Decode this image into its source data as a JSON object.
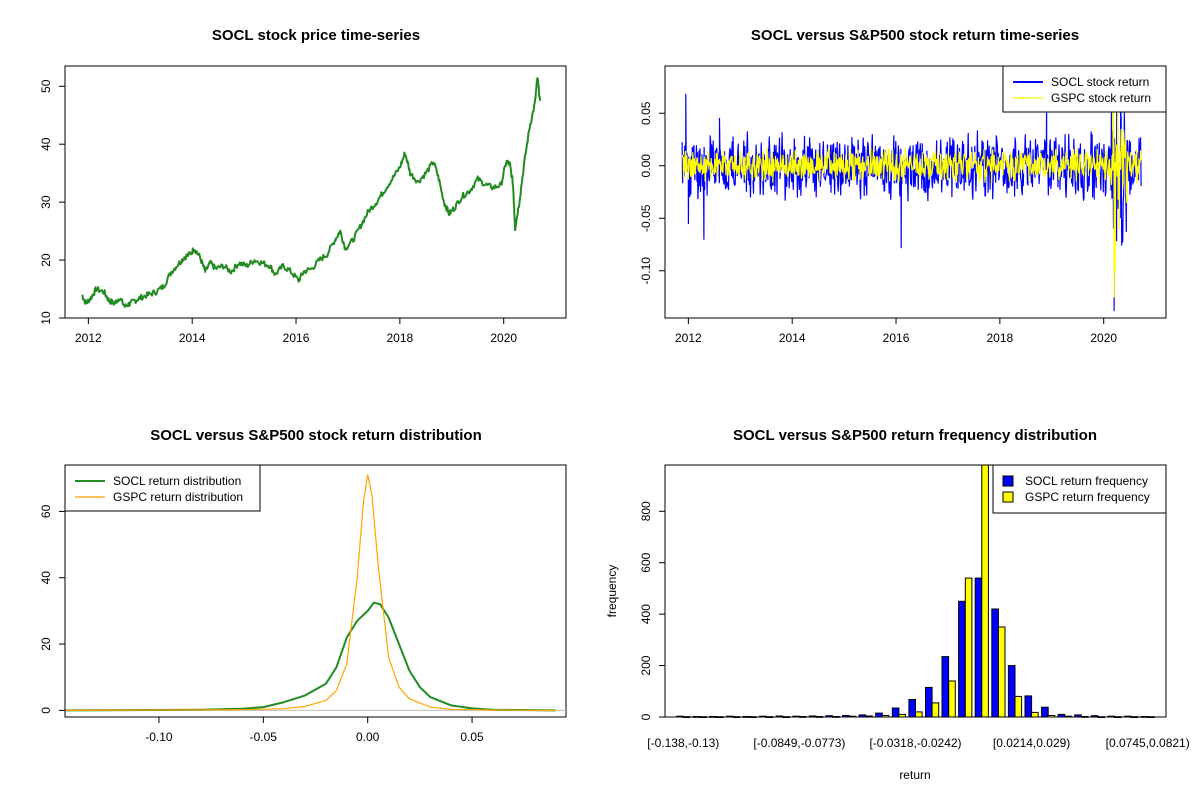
{
  "chart_data": [
    {
      "id": "price",
      "type": "line",
      "title": "SOCL stock price time-series",
      "xlabel": "",
      "ylabel": "",
      "xlim": [
        2011.55,
        2021.2
      ],
      "ylim": [
        10,
        53.5
      ],
      "xticks": [
        2012,
        2014,
        2016,
        2018,
        2020
      ],
      "xtick_labels": [
        "2012",
        "2014",
        "2016",
        "2018",
        "2020"
      ],
      "yticks": [
        10,
        20,
        30,
        40,
        50
      ],
      "ytick_labels": [
        "10",
        "20",
        "30",
        "40",
        "50"
      ],
      "series": [
        {
          "color": "#228B22",
          "x": [
            2011.88,
            2011.95,
            2012.05,
            2012.15,
            2012.3,
            2012.4,
            2012.5,
            2012.6,
            2012.7,
            2012.8,
            2012.9,
            2013.0,
            2013.15,
            2013.3,
            2013.45,
            2013.6,
            2013.75,
            2013.85,
            2013.95,
            2014.05,
            2014.15,
            2014.25,
            2014.35,
            2014.45,
            2014.6,
            2014.75,
            2014.9,
            2015.05,
            2015.2,
            2015.35,
            2015.5,
            2015.6,
            2015.75,
            2015.9,
            2016.05,
            2016.15,
            2016.3,
            2016.45,
            2016.6,
            2016.75,
            2016.85,
            2016.95,
            2017.1,
            2017.25,
            2017.4,
            2017.55,
            2017.7,
            2017.85,
            2018.0,
            2018.1,
            2018.2,
            2018.35,
            2018.5,
            2018.65,
            2018.75,
            2018.85,
            2018.95,
            2019.05,
            2019.2,
            2019.35,
            2019.5,
            2019.65,
            2019.8,
            2019.95,
            2020.05,
            2020.12,
            2020.18,
            2020.22,
            2020.3,
            2020.4,
            2020.5,
            2020.6,
            2020.65,
            2020.7
          ],
          "y": [
            14.0,
            12.5,
            13.5,
            15.0,
            14.5,
            13.0,
            12.5,
            13.5,
            12.0,
            12.5,
            13.0,
            13.5,
            14.0,
            14.5,
            15.5,
            18.0,
            19.5,
            20.5,
            21.0,
            22.0,
            20.5,
            18.0,
            19.5,
            18.5,
            19.0,
            18.0,
            19.5,
            19.0,
            20.0,
            19.5,
            19.0,
            17.5,
            19.0,
            18.0,
            16.5,
            18.0,
            18.5,
            20.0,
            21.0,
            23.5,
            25.0,
            22.0,
            23.5,
            26.0,
            28.5,
            30.0,
            32.0,
            34.0,
            36.0,
            38.5,
            35.0,
            33.5,
            35.0,
            37.0,
            34.0,
            30.0,
            28.0,
            29.0,
            31.0,
            32.0,
            34.0,
            33.0,
            32.5,
            33.0,
            37.0,
            36.5,
            33.0,
            25.5,
            30.0,
            37.0,
            43.0,
            47.0,
            51.5,
            47.5
          ]
        }
      ]
    },
    {
      "id": "returns",
      "type": "line",
      "title": "SOCL versus S&P500 stock return time-series",
      "xlabel": "",
      "ylabel": "",
      "xlim": [
        2011.55,
        2021.2
      ],
      "ylim": [
        -0.145,
        0.095
      ],
      "xticks": [
        2012,
        2014,
        2016,
        2018,
        2020
      ],
      "xtick_labels": [
        "2012",
        "2014",
        "2016",
        "2018",
        "2020"
      ],
      "yticks": [
        -0.1,
        -0.05,
        0.0,
        0.05
      ],
      "ytick_labels": [
        "-0.10",
        "-0.05",
        "0.00",
        "0.05"
      ],
      "legend": {
        "position": "top-right",
        "entries": [
          {
            "label": "SOCL stock return",
            "color": "#0000FF"
          },
          {
            "label": "GSPC stock return",
            "color": "#FFFF00"
          }
        ]
      },
      "series": [
        {
          "name": "SOCL stock return",
          "color": "#0000FF",
          "x_range": [
            2011.88,
            2020.72
          ],
          "band": 0.026,
          "spikes": [
            [
              2011.95,
              0.068
            ],
            [
              2012.0,
              -0.055
            ],
            [
              2012.3,
              -0.07
            ],
            [
              2012.6,
              0.045
            ],
            [
              2016.1,
              -0.078
            ],
            [
              2018.9,
              0.062
            ],
            [
              2020.15,
              0.07
            ],
            [
              2020.2,
              -0.138
            ],
            [
              2020.25,
              0.05
            ],
            [
              2020.35,
              -0.07
            ]
          ]
        },
        {
          "name": "GSPC stock return",
          "color": "#FFFF00",
          "x_range": [
            2011.88,
            2020.72
          ],
          "band": 0.013,
          "spikes": [
            [
              2020.18,
              0.09
            ],
            [
              2020.2,
              -0.125
            ],
            [
              2020.22,
              -0.1
            ],
            [
              2020.27,
              0.07
            ],
            [
              2020.3,
              -0.06
            ]
          ]
        }
      ]
    },
    {
      "id": "density",
      "type": "line",
      "title": "SOCL versus S&P500 stock return distribution",
      "xlabel": "",
      "ylabel": "",
      "xlim": [
        -0.145,
        0.095
      ],
      "ylim": [
        -2,
        74
      ],
      "xticks": [
        -0.1,
        -0.05,
        0.0,
        0.05
      ],
      "xtick_labels": [
        "-0.10",
        "-0.05",
        "0.00",
        "0.05"
      ],
      "yticks": [
        0,
        20,
        40,
        60
      ],
      "ytick_labels": [
        "0",
        "20",
        "40",
        "60"
      ],
      "legend": {
        "position": "top-left",
        "entries": [
          {
            "label": "SOCL return distribution",
            "color": "#228B22"
          },
          {
            "label": "GSPC return distribution",
            "color": "#FFA500"
          }
        ]
      },
      "series": [
        {
          "name": "SOCL return distribution",
          "color": "#228B22",
          "x": [
            -0.145,
            -0.08,
            -0.06,
            -0.05,
            -0.04,
            -0.03,
            -0.02,
            -0.015,
            -0.01,
            -0.005,
            0.0,
            0.003,
            0.006,
            0.01,
            0.015,
            0.02,
            0.025,
            0.03,
            0.04,
            0.05,
            0.06,
            0.09
          ],
          "y": [
            0.0,
            0.2,
            0.5,
            1.0,
            2.5,
            4.5,
            8.0,
            13.0,
            22.0,
            27.0,
            30.0,
            32.5,
            32.0,
            28.0,
            20.0,
            12.0,
            7.0,
            4.0,
            1.5,
            0.6,
            0.2,
            0.0
          ]
        },
        {
          "name": "GSPC return distribution",
          "color": "#FFA500",
          "x": [
            -0.145,
            -0.06,
            -0.04,
            -0.03,
            -0.02,
            -0.015,
            -0.01,
            -0.005,
            -0.002,
            0.0,
            0.002,
            0.005,
            0.01,
            0.015,
            0.02,
            0.03,
            0.04,
            0.06,
            0.09
          ],
          "y": [
            0.0,
            0.2,
            0.5,
            1.2,
            3.0,
            6.0,
            14.0,
            40.0,
            63.0,
            71.0,
            65.0,
            44.0,
            16.0,
            7.0,
            3.5,
            1.0,
            0.3,
            0.1,
            0.0
          ]
        },
        {
          "name": "",
          "color": "#BEBEBE",
          "x": [
            -0.145,
            0.095
          ],
          "y": [
            0,
            0
          ]
        }
      ]
    },
    {
      "id": "freq",
      "type": "bar",
      "title": "SOCL versus S&P500 return frequency distribution",
      "xlabel": "return",
      "ylabel": "frequency",
      "ylim": [
        0,
        980
      ],
      "yticks": [
        0,
        200,
        400,
        600,
        800
      ],
      "ytick_labels": [
        "0",
        "200",
        "400",
        "600",
        "800"
      ],
      "categories": [
        "[-0.138,-0.13)",
        "",
        "",
        "",
        "",
        "",
        "",
        "[-0.0849,-0.0773)",
        "",
        "",
        "",
        "",
        "",
        "",
        "[-0.0318,-0.0242)",
        "",
        "",
        "",
        "",
        "",
        "",
        "[0.0214,0.029)",
        "",
        "",
        "",
        "",
        "",
        "",
        "[0.0745,0.0821)"
      ],
      "label_every": 7,
      "legend": {
        "position": "top-right",
        "entries": [
          {
            "label": "SOCL return frequency",
            "color": "#0000FF"
          },
          {
            "label": "GSPC return frequency",
            "color": "#FFFF00"
          }
        ]
      },
      "series": [
        {
          "name": "SOCL return frequency",
          "color": "#0000FF",
          "values": [
            3,
            2,
            2,
            3,
            2,
            3,
            4,
            3,
            4,
            5,
            6,
            8,
            15,
            35,
            68,
            115,
            235,
            450,
            540,
            420,
            200,
            82,
            38,
            10,
            8,
            5,
            3,
            3,
            2
          ]
        },
        {
          "name": "GSPC return frequency",
          "color": "#FFFF00",
          "values": [
            1,
            1,
            1,
            1,
            1,
            1,
            1,
            2,
            2,
            2,
            3,
            4,
            6,
            10,
            20,
            55,
            140,
            540,
            980,
            350,
            80,
            18,
            6,
            3,
            2,
            1,
            1,
            1,
            1
          ]
        }
      ]
    }
  ]
}
